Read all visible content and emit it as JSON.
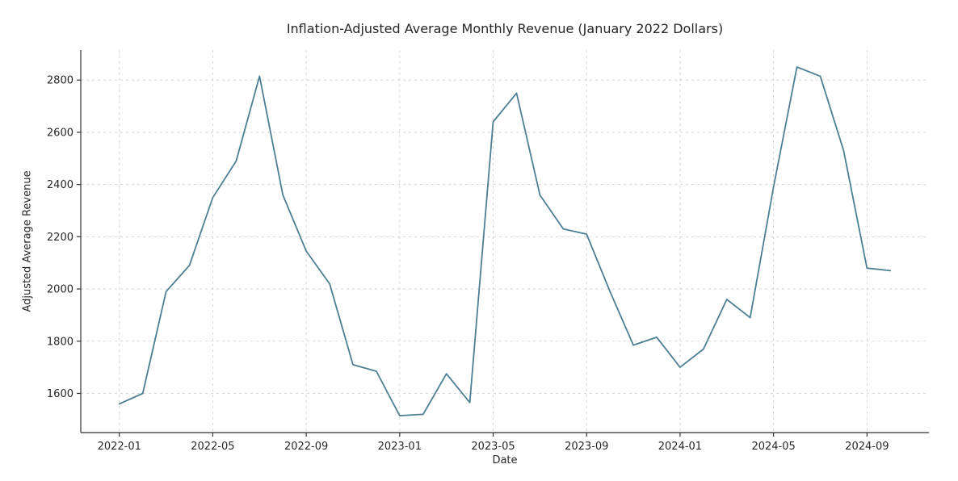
{
  "chart_data": {
    "type": "line",
    "title": "Inflation-Adjusted Average Monthly Revenue (January 2022 Dollars)",
    "xlabel": "Date",
    "ylabel": "Adjusted Average Revenue",
    "x": [
      "2022-01",
      "2022-02",
      "2022-03",
      "2022-04",
      "2022-05",
      "2022-06",
      "2022-07",
      "2022-08",
      "2022-09",
      "2022-10",
      "2022-11",
      "2022-12",
      "2023-01",
      "2023-02",
      "2023-03",
      "2023-04",
      "2023-05",
      "2023-06",
      "2023-07",
      "2023-08",
      "2023-09",
      "2023-10",
      "2023-11",
      "2023-12",
      "2024-01",
      "2024-02",
      "2024-03",
      "2024-04",
      "2024-05",
      "2024-06",
      "2024-07",
      "2024-08",
      "2024-09",
      "2024-10"
    ],
    "values": [
      1560,
      1600,
      1990,
      2090,
      2350,
      2490,
      2815,
      2360,
      2145,
      2020,
      1710,
      1685,
      1515,
      1520,
      1675,
      1565,
      2640,
      2750,
      2360,
      2230,
      2210,
      1990,
      1785,
      1815,
      1700,
      1770,
      1960,
      1890,
      2390,
      2850,
      2815,
      2530,
      2080,
      2070
    ],
    "x_ticks": [
      "2022-01",
      "2022-05",
      "2022-09",
      "2023-01",
      "2023-05",
      "2023-09",
      "2024-01",
      "2024-05",
      "2024-09"
    ],
    "y_ticks": [
      1600,
      1800,
      2000,
      2200,
      2400,
      2600,
      2800
    ],
    "ylim": [
      1450,
      2915
    ],
    "grid": true,
    "grid_style": "dashed",
    "legend": "none",
    "line_color": "#4d7f94",
    "grid_color": "#cccccc",
    "axis_color": "#333333",
    "background": "#ffffff"
  }
}
